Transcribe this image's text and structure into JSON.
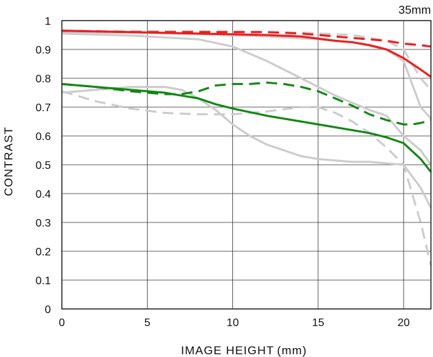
{
  "chart_data": {
    "type": "line",
    "title": "35mm",
    "xlabel": "IMAGE HEIGHT",
    "xlabel_unit": "(mm)",
    "ylabel": "CONTRAST",
    "xlim": [
      0,
      21.6
    ],
    "ylim": [
      0,
      1
    ],
    "x_ticks": [
      0,
      5,
      10,
      15,
      20
    ],
    "y_ticks": [
      0,
      0.1,
      0.2,
      0.3,
      0.4,
      0.5,
      0.6,
      0.7,
      0.8,
      0.9,
      1
    ],
    "y_tick_labels": [
      "0",
      "0.1",
      "0.2",
      "0.3",
      "0.4",
      "0.5",
      "0.6",
      "0.7",
      "0.8",
      "0.9",
      "1"
    ],
    "grid": true,
    "colors": {
      "red": "#ee1c1c",
      "green": "#118811",
      "gray": "#cccccc",
      "grid": "#333333"
    },
    "series": [
      {
        "color": "gray",
        "dash": false,
        "points": [
          [
            0,
            0.955
          ],
          [
            4,
            0.948
          ],
          [
            8,
            0.935
          ],
          [
            10,
            0.91
          ],
          [
            12,
            0.86
          ],
          [
            14,
            0.8
          ],
          [
            16,
            0.74
          ],
          [
            18,
            0.69
          ],
          [
            19,
            0.67
          ],
          [
            20,
            0.6
          ],
          [
            21,
            0.55
          ],
          [
            21.6,
            0.5
          ]
        ]
      },
      {
        "color": "gray",
        "dash": false,
        "points": [
          [
            0,
            0.96
          ],
          [
            4,
            0.958
          ],
          [
            8,
            0.953
          ],
          [
            12,
            0.945
          ],
          [
            15,
            0.935
          ],
          [
            17,
            0.925
          ],
          [
            19,
            0.9
          ],
          [
            20,
            0.86
          ],
          [
            21,
            0.7
          ],
          [
            21.6,
            0.66
          ]
        ]
      },
      {
        "color": "gray",
        "dash": true,
        "points": [
          [
            0,
            0.965
          ],
          [
            5,
            0.963
          ],
          [
            10,
            0.962
          ],
          [
            14,
            0.958
          ],
          [
            17,
            0.95
          ],
          [
            19,
            0.93
          ],
          [
            20,
            0.9
          ],
          [
            21,
            0.8
          ],
          [
            21.6,
            0.76
          ]
        ]
      },
      {
        "color": "gray",
        "dash": false,
        "points": [
          [
            0,
            0.75
          ],
          [
            2,
            0.76
          ],
          [
            4,
            0.77
          ],
          [
            6,
            0.77
          ],
          [
            7,
            0.76
          ],
          [
            8,
            0.73
          ],
          [
            9,
            0.69
          ],
          [
            10,
            0.64
          ],
          [
            11,
            0.6
          ],
          [
            12,
            0.57
          ],
          [
            13,
            0.55
          ],
          [
            14,
            0.53
          ],
          [
            15,
            0.52
          ],
          [
            16,
            0.515
          ],
          [
            17,
            0.51
          ],
          [
            18,
            0.51
          ],
          [
            19,
            0.505
          ],
          [
            20,
            0.5
          ],
          [
            21,
            0.42
          ],
          [
            21.6,
            0.35
          ]
        ]
      },
      {
        "color": "gray",
        "dash": true,
        "points": [
          [
            0,
            0.755
          ],
          [
            2,
            0.72
          ],
          [
            4,
            0.695
          ],
          [
            6,
            0.68
          ],
          [
            8,
            0.675
          ],
          [
            10,
            0.675
          ],
          [
            12,
            0.685
          ],
          [
            14,
            0.7
          ],
          [
            15,
            0.7
          ],
          [
            16,
            0.68
          ],
          [
            17,
            0.65
          ],
          [
            18,
            0.61
          ],
          [
            19,
            0.56
          ],
          [
            20,
            0.5
          ],
          [
            21,
            0.3
          ],
          [
            21.6,
            0.15
          ]
        ]
      },
      {
        "color": "red",
        "dash": false,
        "points": [
          [
            0,
            0.965
          ],
          [
            4,
            0.96
          ],
          [
            8,
            0.955
          ],
          [
            12,
            0.95
          ],
          [
            14,
            0.945
          ],
          [
            16,
            0.93
          ],
          [
            17,
            0.925
          ],
          [
            18,
            0.915
          ],
          [
            19,
            0.9
          ],
          [
            20,
            0.87
          ],
          [
            21,
            0.83
          ],
          [
            21.6,
            0.805
          ]
        ]
      },
      {
        "color": "red",
        "dash": true,
        "points": [
          [
            0,
            0.965
          ],
          [
            4,
            0.96
          ],
          [
            8,
            0.96
          ],
          [
            12,
            0.96
          ],
          [
            14,
            0.955
          ],
          [
            16,
            0.945
          ],
          [
            18,
            0.935
          ],
          [
            19,
            0.93
          ],
          [
            20,
            0.92
          ],
          [
            21,
            0.915
          ],
          [
            21.6,
            0.91
          ]
        ]
      },
      {
        "color": "green",
        "dash": false,
        "points": [
          [
            0,
            0.78
          ],
          [
            2,
            0.77
          ],
          [
            4,
            0.76
          ],
          [
            6,
            0.75
          ],
          [
            8,
            0.73
          ],
          [
            9,
            0.71
          ],
          [
            10,
            0.695
          ],
          [
            12,
            0.67
          ],
          [
            14,
            0.65
          ],
          [
            16,
            0.63
          ],
          [
            18,
            0.61
          ],
          [
            19,
            0.595
          ],
          [
            20,
            0.575
          ],
          [
            21,
            0.52
          ],
          [
            21.6,
            0.475
          ]
        ]
      },
      {
        "color": "green",
        "dash": true,
        "points": [
          [
            0,
            0.78
          ],
          [
            2,
            0.77
          ],
          [
            4,
            0.755
          ],
          [
            6,
            0.745
          ],
          [
            7,
            0.745
          ],
          [
            8,
            0.755
          ],
          [
            9,
            0.775
          ],
          [
            10,
            0.78
          ],
          [
            11,
            0.78
          ],
          [
            12,
            0.785
          ],
          [
            13,
            0.78
          ],
          [
            14,
            0.77
          ],
          [
            15,
            0.755
          ],
          [
            16,
            0.73
          ],
          [
            17,
            0.705
          ],
          [
            18,
            0.675
          ],
          [
            19,
            0.655
          ],
          [
            20,
            0.64
          ],
          [
            20.5,
            0.64
          ],
          [
            21,
            0.645
          ],
          [
            21.6,
            0.655
          ]
        ]
      }
    ]
  }
}
